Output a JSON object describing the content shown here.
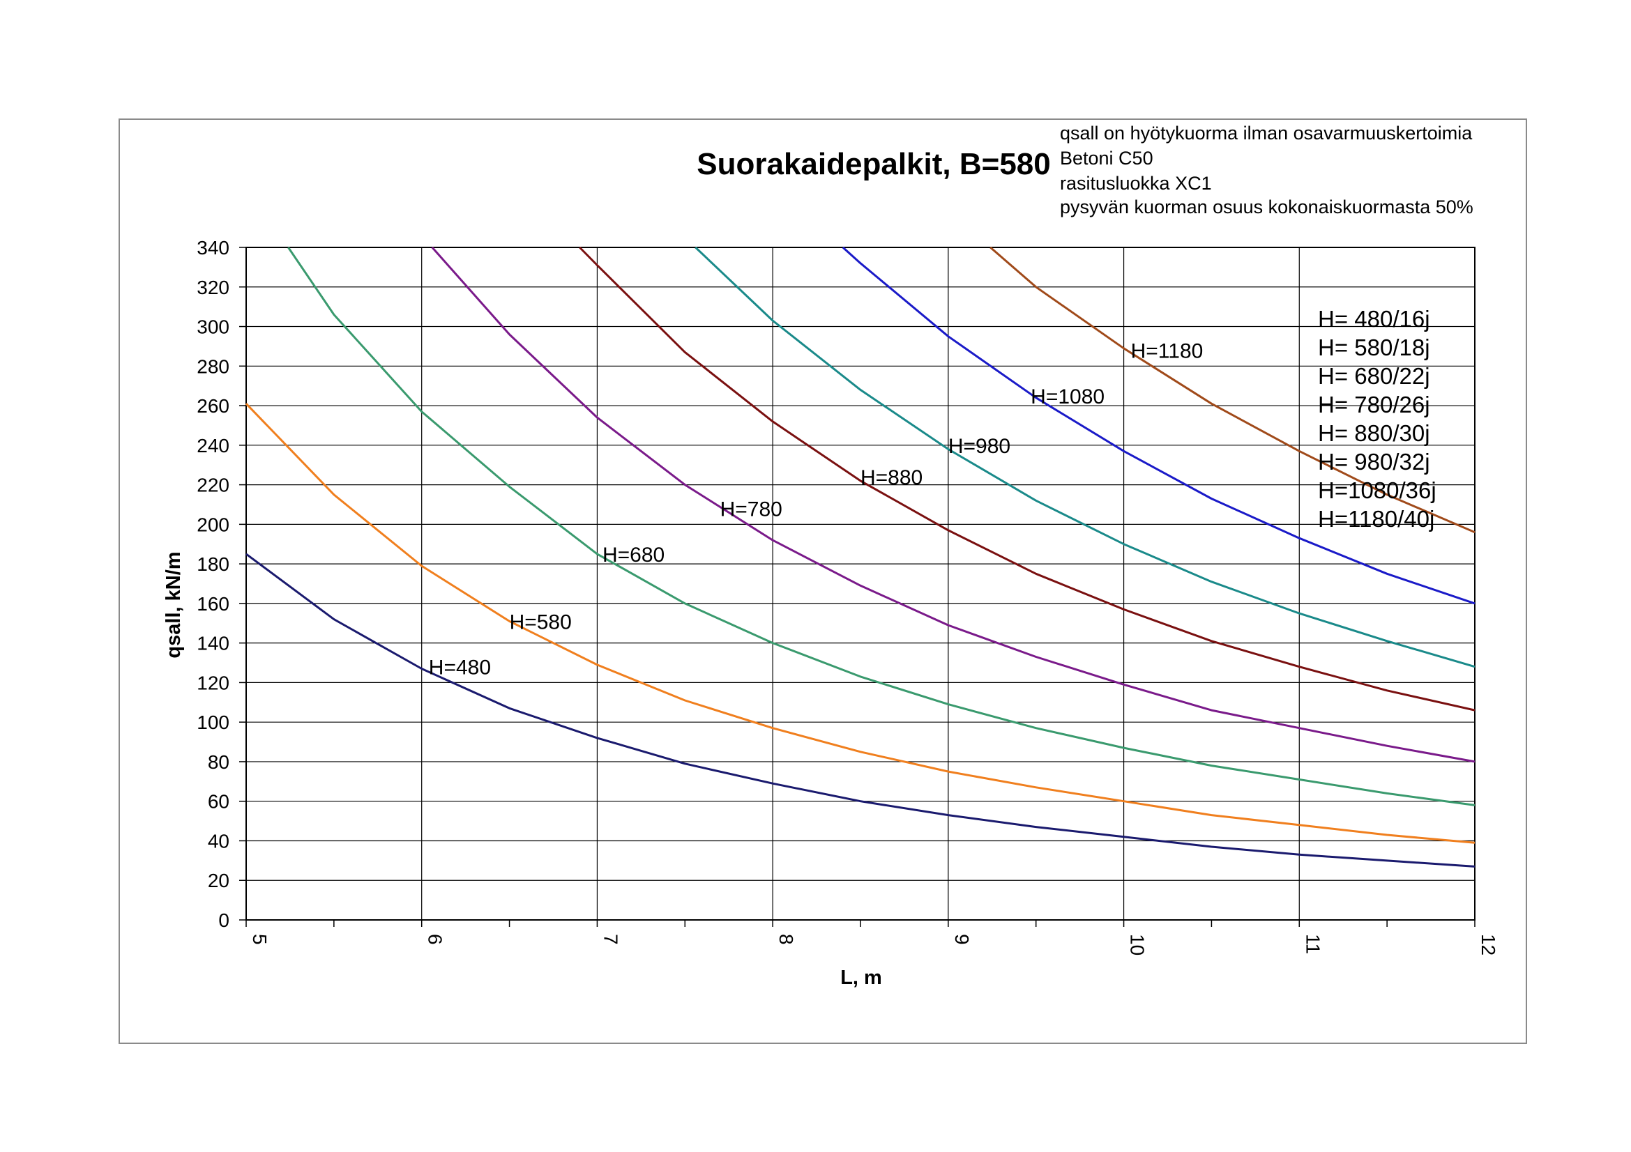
{
  "chart_data": {
    "type": "line",
    "title": "Suorakaidepalkit, B=580",
    "notes": [
      "qsall on hyötykuorma ilman osavarmuuskertoimia",
      "Betoni C50",
      "rasitusluokka XC1",
      "pysyvän kuorman osuus kokonaiskuormasta 50%"
    ],
    "xlabel": "L, m",
    "ylabel": "qsall, kN/m",
    "xlim": [
      5,
      12
    ],
    "ylim": [
      0,
      340
    ],
    "x_ticks": [
      "5",
      "6",
      "7",
      "8",
      "9",
      "10",
      "11",
      "12"
    ],
    "y_ticks": [
      "0",
      "20",
      "40",
      "60",
      "80",
      "100",
      "120",
      "140",
      "160",
      "180",
      "200",
      "220",
      "240",
      "260",
      "280",
      "300",
      "320",
      "340"
    ],
    "grid": true,
    "legend_position": "top-right",
    "legend_entries": [
      "H= 480/16j",
      "H= 580/18j",
      "H= 680/22j",
      "H= 780/26j",
      "H= 880/30j",
      "H= 980/32j",
      "H=1080/36j",
      "H=1180/40j"
    ],
    "series": [
      {
        "name": "H=480",
        "color": "#1a1a6e",
        "x": [
          5,
          5.5,
          6,
          6.5,
          7,
          7.5,
          8,
          8.5,
          9,
          9.5,
          10,
          10.5,
          11,
          11.5,
          12
        ],
        "y": [
          185,
          152,
          127,
          107,
          92,
          79,
          69,
          60,
          53,
          47,
          42,
          37,
          33,
          30,
          27
        ]
      },
      {
        "name": "H=580",
        "color": "#f07f1e",
        "x": [
          5,
          5.5,
          6,
          6.5,
          7,
          7.5,
          8,
          8.5,
          9,
          9.5,
          10,
          10.5,
          11,
          11.5,
          12
        ],
        "y": [
          261,
          215,
          179,
          151,
          129,
          111,
          97,
          85,
          75,
          67,
          60,
          53,
          48,
          43,
          39
        ]
      },
      {
        "name": "H=680",
        "color": "#3a9a6e",
        "x": [
          5.24,
          5.5,
          6,
          6.5,
          7,
          7.5,
          8,
          8.5,
          9,
          9.5,
          10,
          10.5,
          11,
          11.5,
          12
        ],
        "y": [
          340,
          306,
          257,
          219,
          185,
          160,
          140,
          123,
          109,
          97,
          87,
          78,
          71,
          64,
          58
        ]
      },
      {
        "name": "H=780",
        "color": "#7a1a8a",
        "x": [
          6.06,
          6.5,
          7,
          7.5,
          8,
          8.5,
          9,
          9.5,
          10,
          10.5,
          11,
          11.5,
          12
        ],
        "y": [
          340,
          296,
          254,
          220,
          192,
          169,
          149,
          133,
          119,
          106,
          97,
          88,
          80
        ]
      },
      {
        "name": "H=880",
        "color": "#7a1010",
        "x": [
          6.9,
          7,
          7.5,
          8,
          8.5,
          9,
          9.5,
          10,
          10.5,
          11,
          11.5,
          12
        ],
        "y": [
          340,
          331,
          287,
          252,
          222,
          197,
          175,
          157,
          141,
          128,
          116,
          106
        ]
      },
      {
        "name": "H=980",
        "color": "#1a8a8a",
        "x": [
          7.56,
          8,
          8.5,
          9,
          9.5,
          10,
          10.5,
          11,
          11.5,
          12
        ],
        "y": [
          340,
          303,
          268,
          238,
          212,
          190,
          171,
          155,
          141,
          128
        ]
      },
      {
        "name": "H=1080",
        "color": "#1a1ac8",
        "x": [
          8.4,
          8.5,
          9,
          9.5,
          10,
          10.5,
          11,
          11.5,
          12
        ],
        "y": [
          340,
          332,
          295,
          264,
          237,
          213,
          193,
          175,
          160
        ]
      },
      {
        "name": "H=1180",
        "color": "#a04a1a",
        "x": [
          9.24,
          9.5,
          10,
          10.5,
          11,
          11.5,
          12
        ],
        "y": [
          340,
          320,
          289,
          261,
          237,
          215,
          196
        ]
      }
    ],
    "curve_labels": [
      {
        "text": "H=480",
        "x": 6.04,
        "y": 128
      },
      {
        "text": "H=580",
        "x": 6.5,
        "y": 151
      },
      {
        "text": "H=680",
        "x": 7.03,
        "y": 185
      },
      {
        "text": "H=780",
        "x": 7.7,
        "y": 208
      },
      {
        "text": "H=880",
        "x": 8.5,
        "y": 224
      },
      {
        "text": "H=980",
        "x": 9.0,
        "y": 240
      },
      {
        "text": "H=1080",
        "x": 9.47,
        "y": 265
      },
      {
        "text": "H=1180",
        "x": 10.04,
        "y": 288
      }
    ]
  }
}
